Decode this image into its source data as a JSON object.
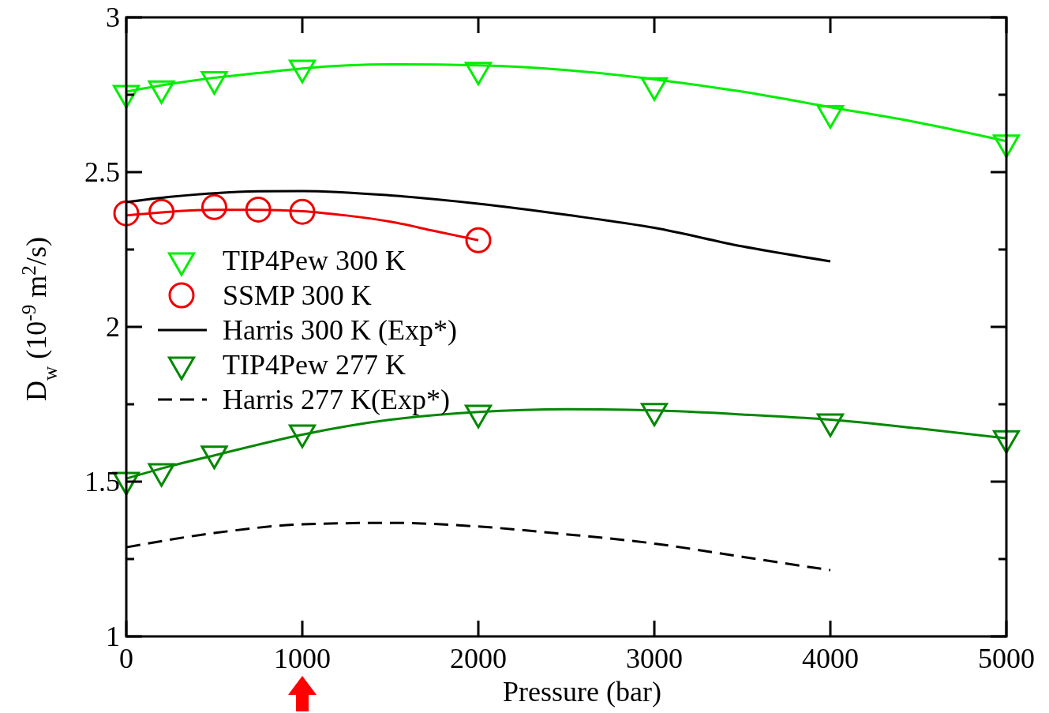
{
  "chart_data": {
    "type": "line",
    "xlabel": "Pressure (bar)",
    "ylabel": "D$_{w}$ (10$^{-9}$ m$^{2}$/s)",
    "xlim": [
      0,
      5000
    ],
    "xticks": [
      0,
      1000,
      2000,
      3000,
      4000,
      5000
    ],
    "ylim": [
      1,
      3
    ],
    "yticks": [
      1,
      {
        "value": 1.25,
        "label": null
      },
      1.5,
      {
        "value": 1.75,
        "label": null
      },
      2,
      {
        "value": 2.25,
        "label": null
      },
      2.5,
      {
        "value": 2.75,
        "label": null
      },
      3
    ],
    "grid": false,
    "legend": "left",
    "series": [
      {
        "name": "TIP4Pew 300 K",
        "type": "scatter",
        "marker": "triangle",
        "color": "#00ee00",
        "x": [
          0,
          200,
          500,
          1000,
          2000,
          3000,
          4000,
          5000
        ],
        "values": [
          2.755,
          2.77,
          2.8,
          2.837,
          2.83,
          2.78,
          2.69,
          2.595
        ]
      },
      {
        "marker": "none",
        "color": "#00ee00",
        "x": [
          0,
          250,
          500,
          750,
          1000,
          1500,
          2000,
          2500,
          3000,
          3500,
          4000,
          4500,
          5000
        ],
        "values": [
          2.76,
          2.785,
          2.805,
          2.82,
          2.835,
          2.848,
          2.845,
          2.83,
          2.8,
          2.76,
          2.71,
          2.66,
          2.6
        ]
      },
      {
        "name": "SSMP 300 K",
        "type": "scatter",
        "marker": "circle",
        "color": "#ee0000",
        "x": [
          0,
          200,
          500,
          750,
          1000,
          2000
        ],
        "values": [
          2.367,
          2.372,
          2.387,
          2.379,
          2.372,
          2.28
        ]
      },
      {
        "marker": "none",
        "color": "#ee0000",
        "x": [
          0,
          250,
          500,
          750,
          1000,
          1250,
          1500,
          1750,
          2000
        ],
        "values": [
          2.36,
          2.372,
          2.378,
          2.378,
          2.374,
          2.36,
          2.34,
          2.31,
          2.28
        ]
      },
      {
        "name": "Harris 300 K (Exp*)",
        "marker": "none",
        "line_style": "solid",
        "color": "#000000",
        "x": [
          0,
          250,
          500,
          750,
          1000,
          1500,
          2000,
          2500,
          3000,
          3500,
          4000
        ],
        "values": [
          2.403,
          2.42,
          2.432,
          2.438,
          2.439,
          2.425,
          2.398,
          2.362,
          2.32,
          2.26,
          2.212
        ]
      },
      {
        "name": "TIP4Pew 277 K",
        "type": "scatter",
        "marker": "triangle",
        "color": "#008800",
        "x": [
          0,
          200,
          500,
          1000,
          2000,
          3000,
          4000,
          5000
        ],
        "values": [
          1.505,
          1.533,
          1.59,
          1.658,
          1.722,
          1.728,
          1.694,
          1.64
        ]
      },
      {
        "marker": "none",
        "color": "#008800",
        "x": [
          0,
          250,
          500,
          1000,
          1500,
          2000,
          2500,
          3000,
          3500,
          4000,
          4500,
          5000
        ],
        "values": [
          1.51,
          1.55,
          1.585,
          1.652,
          1.7,
          1.725,
          1.734,
          1.73,
          1.717,
          1.7,
          1.672,
          1.64
        ]
      },
      {
        "name": "Harris 277 K(Exp*)",
        "marker": "none",
        "line_style": "dashed",
        "color": "#000000",
        "x": [
          0,
          500,
          1000,
          1500,
          2000,
          2500,
          3000,
          3500,
          4000
        ],
        "values": [
          1.288,
          1.334,
          1.362,
          1.367,
          1.355,
          1.33,
          1.3,
          1.257,
          1.214
        ]
      }
    ]
  }
}
